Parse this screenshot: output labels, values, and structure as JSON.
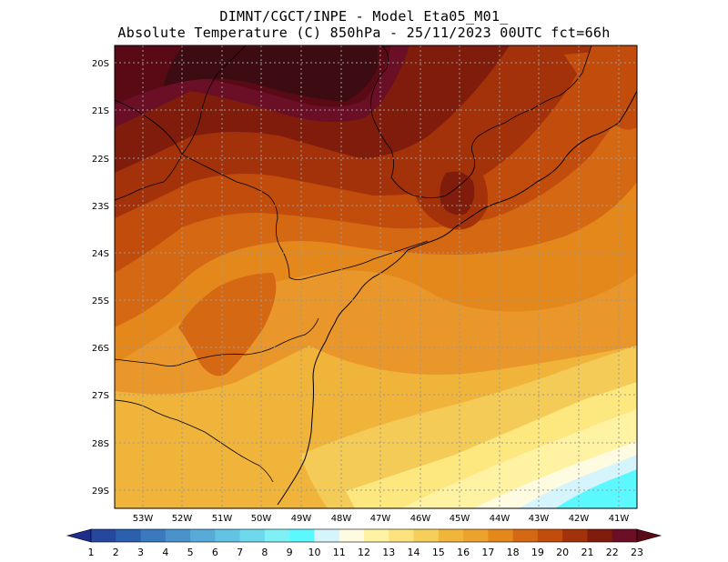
{
  "header": {
    "line1": "DIMNT/CGCT/INPE -  Model Eta05_M01_",
    "line2": "Absolute Temperature (C) 850hPa -  25/11/2023 00UTC fct=66h"
  },
  "axes": {
    "lat_labels": [
      "20S",
      "21S",
      "22S",
      "23S",
      "24S",
      "25S",
      "26S",
      "27S",
      "28S",
      "29S"
    ],
    "lon_labels": [
      "53W",
      "52W",
      "51W",
      "50W",
      "49W",
      "48W",
      "47W",
      "46W",
      "45W",
      "44W",
      "43W",
      "42W",
      "41W"
    ]
  },
  "colorbar": {
    "labels": [
      "1",
      "2",
      "3",
      "4",
      "5",
      "6",
      "7",
      "8",
      "9",
      "10",
      "11",
      "12",
      "13",
      "14",
      "15",
      "16",
      "17",
      "18",
      "19",
      "20",
      "21",
      "22",
      "23"
    ],
    "colors": [
      "#1f2e8c",
      "#25479e",
      "#2c5fae",
      "#3a79bd",
      "#4a92cb",
      "#58abd8",
      "#63c3e3",
      "#6ed9ec",
      "#7ef0f6",
      "#5cf8ff",
      "#d6f4fb",
      "#fffbe0",
      "#fff3a3",
      "#fde37d",
      "#f6cf5a",
      "#f0b63a",
      "#eca22d",
      "#e4881c",
      "#d56812",
      "#c14c0b",
      "#a3320a",
      "#7f1c0c",
      "#6b0f26",
      "#5a0a14"
    ]
  },
  "map": {
    "state_line_color": "#000000",
    "grid_color": "#9a9a9a"
  }
}
